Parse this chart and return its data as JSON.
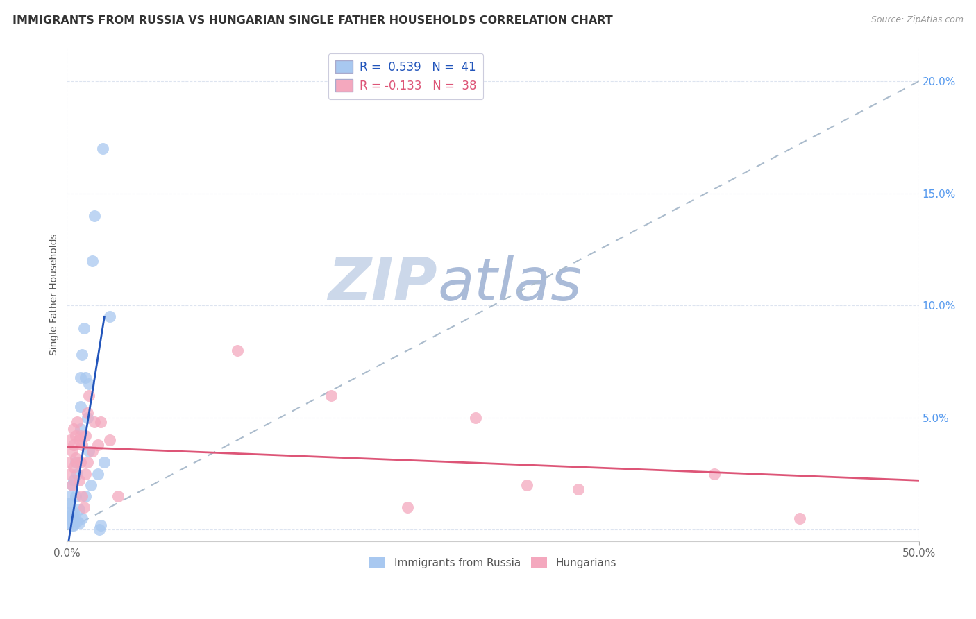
{
  "title": "IMMIGRANTS FROM RUSSIA VS HUNGARIAN SINGLE FATHER HOUSEHOLDS CORRELATION CHART",
  "source": "Source: ZipAtlas.com",
  "ylabel": "Single Father Households",
  "legend_blue_r": "R =  0.539",
  "legend_blue_n": "N =  41",
  "legend_pink_r": "R = -0.133",
  "legend_pink_n": "N =  38",
  "blue_color": "#a8c8f0",
  "pink_color": "#f4a8be",
  "blue_line_color": "#2255bb",
  "pink_line_color": "#dd5577",
  "diag_line_color": "#aabbcc",
  "watermark_zip_color": "#ccd8ea",
  "watermark_atlas_color": "#aabbd8",
  "background_color": "#ffffff",
  "xlim": [
    0.0,
    0.5
  ],
  "ylim": [
    -0.005,
    0.215
  ],
  "blue_scatter_x": [
    0.001,
    0.001,
    0.001,
    0.002,
    0.002,
    0.002,
    0.002,
    0.003,
    0.003,
    0.003,
    0.003,
    0.004,
    0.004,
    0.004,
    0.004,
    0.005,
    0.005,
    0.006,
    0.006,
    0.007,
    0.007,
    0.008,
    0.008,
    0.008,
    0.009,
    0.009,
    0.01,
    0.011,
    0.011,
    0.012,
    0.013,
    0.013,
    0.014,
    0.015,
    0.016,
    0.018,
    0.019,
    0.02,
    0.021,
    0.022,
    0.025
  ],
  "blue_scatter_y": [
    0.005,
    0.008,
    0.012,
    0.003,
    0.006,
    0.01,
    0.015,
    0.002,
    0.004,
    0.007,
    0.02,
    0.002,
    0.005,
    0.008,
    0.022,
    0.015,
    0.03,
    0.004,
    0.025,
    0.003,
    0.009,
    0.045,
    0.055,
    0.068,
    0.005,
    0.078,
    0.09,
    0.015,
    0.068,
    0.05,
    0.035,
    0.065,
    0.02,
    0.12,
    0.14,
    0.025,
    0.0,
    0.002,
    0.17,
    0.03,
    0.095
  ],
  "pink_scatter_x": [
    0.001,
    0.002,
    0.002,
    0.003,
    0.003,
    0.004,
    0.004,
    0.004,
    0.005,
    0.005,
    0.006,
    0.006,
    0.007,
    0.007,
    0.008,
    0.008,
    0.009,
    0.009,
    0.01,
    0.011,
    0.011,
    0.012,
    0.012,
    0.013,
    0.015,
    0.016,
    0.018,
    0.02,
    0.025,
    0.03,
    0.1,
    0.155,
    0.2,
    0.24,
    0.27,
    0.3,
    0.38,
    0.43
  ],
  "pink_scatter_y": [
    0.03,
    0.025,
    0.04,
    0.02,
    0.035,
    0.028,
    0.038,
    0.045,
    0.032,
    0.042,
    0.03,
    0.048,
    0.022,
    0.04,
    0.03,
    0.042,
    0.015,
    0.038,
    0.01,
    0.025,
    0.042,
    0.03,
    0.052,
    0.06,
    0.035,
    0.048,
    0.038,
    0.048,
    0.04,
    0.015,
    0.08,
    0.06,
    0.01,
    0.05,
    0.02,
    0.018,
    0.025,
    0.005
  ],
  "blue_line_x": [
    0.0,
    0.022
  ],
  "blue_line_y": [
    -0.01,
    0.095
  ],
  "pink_line_x": [
    0.0,
    0.5
  ],
  "pink_line_y": [
    0.037,
    0.022
  ],
  "diag_line_x": [
    0.0,
    0.5
  ],
  "diag_line_y": [
    0.0,
    0.2
  ],
  "xtick_positions": [
    0.0,
    0.5
  ],
  "xtick_labels": [
    "0.0%",
    "50.0%"
  ],
  "ytick_positions": [
    0.0,
    0.05,
    0.1,
    0.15,
    0.2
  ],
  "ytick_labels": [
    "",
    "5.0%",
    "10.0%",
    "15.0%",
    "20.0%"
  ]
}
